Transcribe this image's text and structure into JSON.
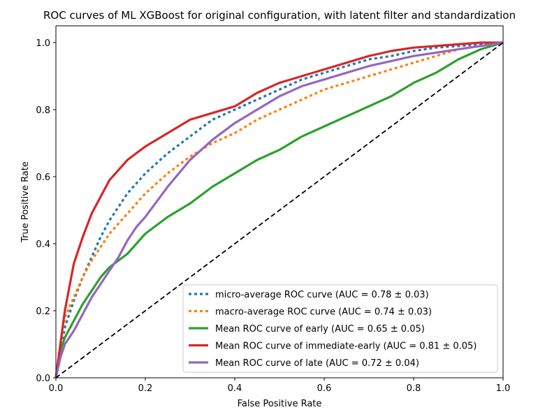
{
  "chart_data": {
    "type": "line",
    "title": "ROC curves of ML XGBoost for original configuration, with latent filter and standardization",
    "xlabel": "False Positive Rate",
    "ylabel": "True Positive Rate",
    "xlim": [
      0.0,
      1.0
    ],
    "ylim": [
      0.0,
      1.05
    ],
    "xticks": [
      "0.0",
      "0.2",
      "0.4",
      "0.6",
      "0.8",
      "1.0"
    ],
    "yticks": [
      "0.0",
      "0.2",
      "0.4",
      "0.6",
      "0.8",
      "1.0"
    ],
    "grid": false,
    "legend_position": "lower-right",
    "series": [
      {
        "name": "micro-average ROC curve (AUC = 0.78 ± 0.03)",
        "color": "#1f77b4",
        "style": "dotted",
        "x": [
          0.0,
          0.01,
          0.02,
          0.04,
          0.06,
          0.08,
          0.1,
          0.12,
          0.14,
          0.16,
          0.18,
          0.2,
          0.25,
          0.3,
          0.35,
          0.4,
          0.45,
          0.5,
          0.55,
          0.6,
          0.65,
          0.7,
          0.75,
          0.8,
          0.85,
          0.9,
          0.95,
          1.0
        ],
        "values": [
          0.0,
          0.08,
          0.15,
          0.23,
          0.3,
          0.36,
          0.42,
          0.47,
          0.51,
          0.55,
          0.58,
          0.61,
          0.67,
          0.72,
          0.77,
          0.8,
          0.83,
          0.86,
          0.89,
          0.91,
          0.93,
          0.95,
          0.96,
          0.975,
          0.985,
          0.99,
          0.995,
          1.0
        ]
      },
      {
        "name": "macro-average ROC curve (AUC = 0.74 ± 0.03)",
        "color": "#ff7f0e",
        "style": "dotted",
        "x": [
          0.0,
          0.01,
          0.02,
          0.04,
          0.06,
          0.08,
          0.1,
          0.12,
          0.14,
          0.16,
          0.18,
          0.2,
          0.25,
          0.3,
          0.35,
          0.4,
          0.45,
          0.5,
          0.55,
          0.6,
          0.65,
          0.7,
          0.75,
          0.8,
          0.85,
          0.9,
          0.95,
          1.0
        ],
        "values": [
          0.0,
          0.1,
          0.18,
          0.24,
          0.3,
          0.35,
          0.39,
          0.43,
          0.46,
          0.49,
          0.52,
          0.55,
          0.61,
          0.66,
          0.7,
          0.73,
          0.77,
          0.8,
          0.83,
          0.86,
          0.88,
          0.9,
          0.92,
          0.94,
          0.96,
          0.98,
          0.99,
          1.0
        ]
      },
      {
        "name": "Mean ROC curve of early (AUC = 0.65 ± 0.05)",
        "color": "#2ca02c",
        "style": "solid",
        "x": [
          0.0,
          0.01,
          0.02,
          0.04,
          0.06,
          0.08,
          0.1,
          0.12,
          0.14,
          0.16,
          0.18,
          0.2,
          0.25,
          0.3,
          0.35,
          0.4,
          0.45,
          0.5,
          0.55,
          0.6,
          0.65,
          0.7,
          0.75,
          0.8,
          0.85,
          0.9,
          0.95,
          1.0
        ],
        "values": [
          0.0,
          0.08,
          0.12,
          0.17,
          0.22,
          0.26,
          0.3,
          0.33,
          0.35,
          0.37,
          0.4,
          0.43,
          0.48,
          0.52,
          0.57,
          0.61,
          0.65,
          0.68,
          0.72,
          0.75,
          0.78,
          0.81,
          0.84,
          0.88,
          0.91,
          0.95,
          0.98,
          1.0
        ]
      },
      {
        "name": "Mean ROC curve of immediate-early (AUC = 0.81 ± 0.05)",
        "color": "#d62728",
        "style": "solid",
        "x": [
          0.0,
          0.01,
          0.02,
          0.04,
          0.06,
          0.08,
          0.1,
          0.12,
          0.14,
          0.16,
          0.18,
          0.2,
          0.25,
          0.3,
          0.35,
          0.4,
          0.45,
          0.5,
          0.55,
          0.6,
          0.65,
          0.7,
          0.75,
          0.8,
          0.85,
          0.9,
          0.95,
          1.0
        ],
        "values": [
          0.0,
          0.1,
          0.2,
          0.34,
          0.42,
          0.49,
          0.54,
          0.59,
          0.62,
          0.65,
          0.67,
          0.69,
          0.73,
          0.77,
          0.79,
          0.81,
          0.85,
          0.88,
          0.9,
          0.92,
          0.94,
          0.96,
          0.975,
          0.985,
          0.99,
          0.995,
          1.0,
          1.0
        ]
      },
      {
        "name": "Mean ROC curve of late (AUC = 0.72 ± 0.04)",
        "color": "#9467bd",
        "style": "solid",
        "x": [
          0.0,
          0.01,
          0.02,
          0.04,
          0.06,
          0.08,
          0.1,
          0.12,
          0.14,
          0.16,
          0.18,
          0.2,
          0.25,
          0.3,
          0.35,
          0.4,
          0.45,
          0.5,
          0.55,
          0.6,
          0.65,
          0.7,
          0.75,
          0.8,
          0.85,
          0.9,
          0.95,
          1.0
        ],
        "values": [
          0.0,
          0.06,
          0.1,
          0.14,
          0.19,
          0.24,
          0.28,
          0.32,
          0.36,
          0.41,
          0.45,
          0.48,
          0.57,
          0.65,
          0.71,
          0.76,
          0.8,
          0.84,
          0.87,
          0.89,
          0.91,
          0.93,
          0.945,
          0.96,
          0.97,
          0.98,
          0.99,
          1.0
        ]
      },
      {
        "name": "",
        "color": "#000000",
        "style": "dashed",
        "x": [
          0.0,
          1.0
        ],
        "values": [
          0.0,
          1.0
        ]
      }
    ]
  }
}
